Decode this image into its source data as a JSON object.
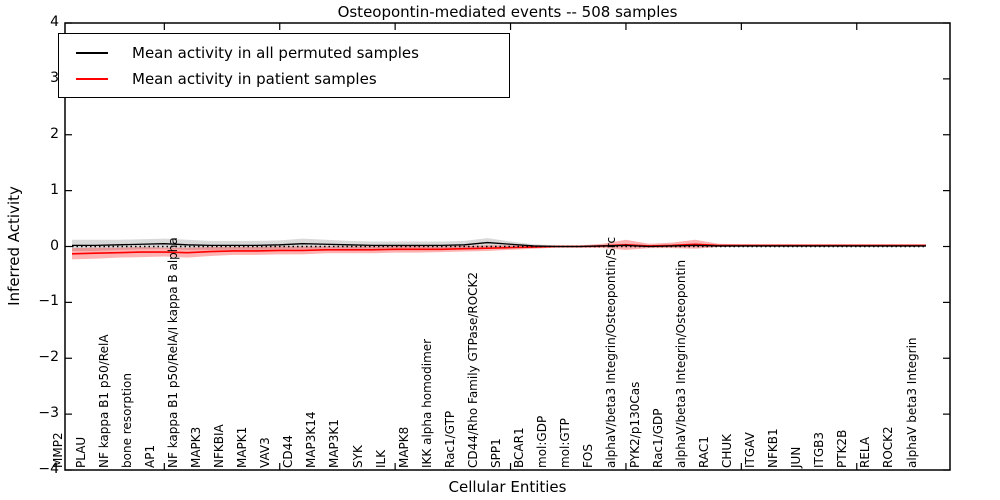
{
  "title": "Osteopontin-mediated events -- 508 samples",
  "axes": {
    "ylabel": "Inferred Activity",
    "xlabel": "Cellular Entities"
  },
  "legend": {
    "items": [
      {
        "label": "Mean activity in all permuted samples",
        "color": "#000000"
      },
      {
        "label": "Mean activity in patient samples",
        "color": "#ff0000"
      }
    ]
  },
  "chart_data": {
    "type": "line",
    "title": "Osteopontin-mediated events -- 508 samples",
    "xlabel": "Cellular Entities",
    "ylabel": "Inferred Activity",
    "ylim": [
      -4,
      4
    ],
    "grid": false,
    "legend_position": "upper left",
    "ytick_values": [
      4,
      3,
      2,
      1,
      0,
      -1,
      -2,
      -3,
      -4
    ],
    "ytick_labels": [
      "4",
      "3",
      "2",
      "1",
      "0",
      "−1",
      "−2",
      "−3",
      "−4"
    ],
    "x_major_ticks_every": 5,
    "categories": [
      "MMP2",
      "PLAU",
      "NF kappa B1 p50/RelA",
      "bone resorption",
      "AP1",
      "NF kappa B1 p50/RelA/I kappa B alpha",
      "MAPK3",
      "NFKBIA",
      "MAPK1",
      "VAV3",
      "CD44",
      "MAP3K14",
      "MAP3K1",
      "SYK",
      "ILK",
      "MAPK8",
      "IKK alpha homodimer",
      "Rac1/GTP",
      "CD44/Rho Family GTPase/ROCK2",
      "SPP1",
      "BCAR1",
      "mol:GDP",
      "mol:GTP",
      "FOS",
      "alphaV/beta3 Integrin/Osteopontin/Src",
      "PYK2/p130Cas",
      "Rac1/GDP",
      "alphaV/beta3 Integrin/Osteopontin",
      "RAC1",
      "CHUK",
      "ITGAV",
      "NFKB1",
      "JUN",
      "ITGB3",
      "PTK2B",
      "RELA",
      "ROCK2",
      "alphaV beta3 Integrin"
    ],
    "series": [
      {
        "name": "Mean activity in all permuted samples",
        "color": "#000000",
        "band_color": "rgba(0,0,0,0.15)",
        "values": [
          0.02,
          0.02,
          0.03,
          0.04,
          0.05,
          0.03,
          0.02,
          0.02,
          0.02,
          0.03,
          0.05,
          0.04,
          0.03,
          0.02,
          0.02,
          0.02,
          0.02,
          0.03,
          0.07,
          0.04,
          0.01,
          0.0,
          0.0,
          0.01,
          0.02,
          0.0,
          0.01,
          0.02,
          0.01,
          0.01,
          0.01,
          0.01,
          0.01,
          0.01,
          0.01,
          0.01,
          0.01,
          0.01
        ],
        "band_halfwidth": [
          0.1,
          0.1,
          0.09,
          0.09,
          0.09,
          0.09,
          0.08,
          0.08,
          0.08,
          0.08,
          0.09,
          0.08,
          0.07,
          0.07,
          0.07,
          0.07,
          0.07,
          0.07,
          0.08,
          0.05,
          0.03,
          0.02,
          0.02,
          0.02,
          0.03,
          0.02,
          0.02,
          0.03,
          0.02,
          0.02,
          0.02,
          0.02,
          0.02,
          0.02,
          0.02,
          0.02,
          0.02,
          0.02
        ]
      },
      {
        "name": "Mean activity in patient samples",
        "color": "#ff0000",
        "band_color": "rgba(255,0,0,0.3)",
        "values": [
          -0.13,
          -0.12,
          -0.11,
          -0.1,
          -0.1,
          -0.11,
          -0.09,
          -0.08,
          -0.08,
          -0.07,
          -0.07,
          -0.06,
          -0.06,
          -0.06,
          -0.05,
          -0.05,
          -0.05,
          -0.04,
          -0.03,
          -0.02,
          -0.01,
          0.0,
          0.0,
          0.01,
          0.03,
          0.01,
          0.02,
          0.04,
          0.02,
          0.02,
          0.02,
          0.02,
          0.02,
          0.02,
          0.02,
          0.02,
          0.02,
          0.02
        ],
        "band_halfwidth": [
          0.1,
          0.1,
          0.09,
          0.09,
          0.08,
          0.09,
          0.08,
          0.07,
          0.07,
          0.07,
          0.07,
          0.06,
          0.06,
          0.06,
          0.06,
          0.06,
          0.05,
          0.05,
          0.05,
          0.04,
          0.03,
          0.02,
          0.02,
          0.04,
          0.09,
          0.04,
          0.05,
          0.08,
          0.03,
          0.02,
          0.02,
          0.02,
          0.02,
          0.02,
          0.02,
          0.02,
          0.02,
          0.02
        ]
      }
    ],
    "zero_line": {
      "value": 0,
      "style": "dotted",
      "color": "#000000"
    }
  }
}
